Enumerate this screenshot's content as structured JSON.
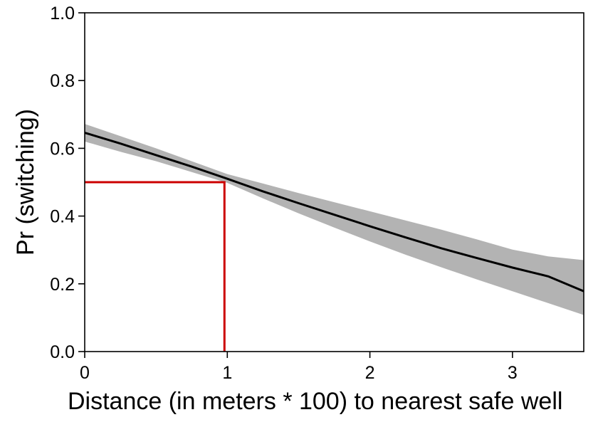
{
  "chart_data": {
    "type": "line",
    "xlabel": "Distance (in meters * 100) to nearest safe well",
    "ylabel": "Pr (switching)",
    "xlim": [
      0,
      3.5
    ],
    "ylim": [
      0,
      1
    ],
    "x_ticks": [
      "0",
      "1",
      "2",
      "3"
    ],
    "y_ticks": [
      "0.0",
      "0.2",
      "0.4",
      "0.6",
      "0.8",
      "1.0"
    ],
    "grid": false,
    "legend": "none",
    "colors": {
      "curve": "#000000",
      "band": "#b3b3b3",
      "reference": "#cc0000"
    },
    "series": [
      {
        "x": [
          0,
          0.25,
          0.5,
          0.75,
          1.0,
          1.25,
          1.5,
          1.75,
          2.0,
          2.25,
          2.5,
          2.75,
          3.0,
          3.25,
          3.5
        ],
        "y": [
          0.646,
          0.614,
          0.58,
          0.546,
          0.51,
          0.473,
          0.438,
          0.404,
          0.37,
          0.337,
          0.305,
          0.276,
          0.248,
          0.222,
          0.178
        ],
        "lower": [
          0.62,
          0.59,
          0.562,
          0.53,
          0.498,
          0.452,
          0.408,
          0.366,
          0.325,
          0.286,
          0.249,
          0.213,
          0.178,
          0.143,
          0.108
        ],
        "upper": [
          0.672,
          0.636,
          0.6,
          0.562,
          0.524,
          0.496,
          0.468,
          0.441,
          0.414,
          0.387,
          0.36,
          0.331,
          0.301,
          0.281,
          0.27
        ]
      }
    ],
    "reference": {
      "x": 0.98,
      "y": 0.5
    }
  }
}
